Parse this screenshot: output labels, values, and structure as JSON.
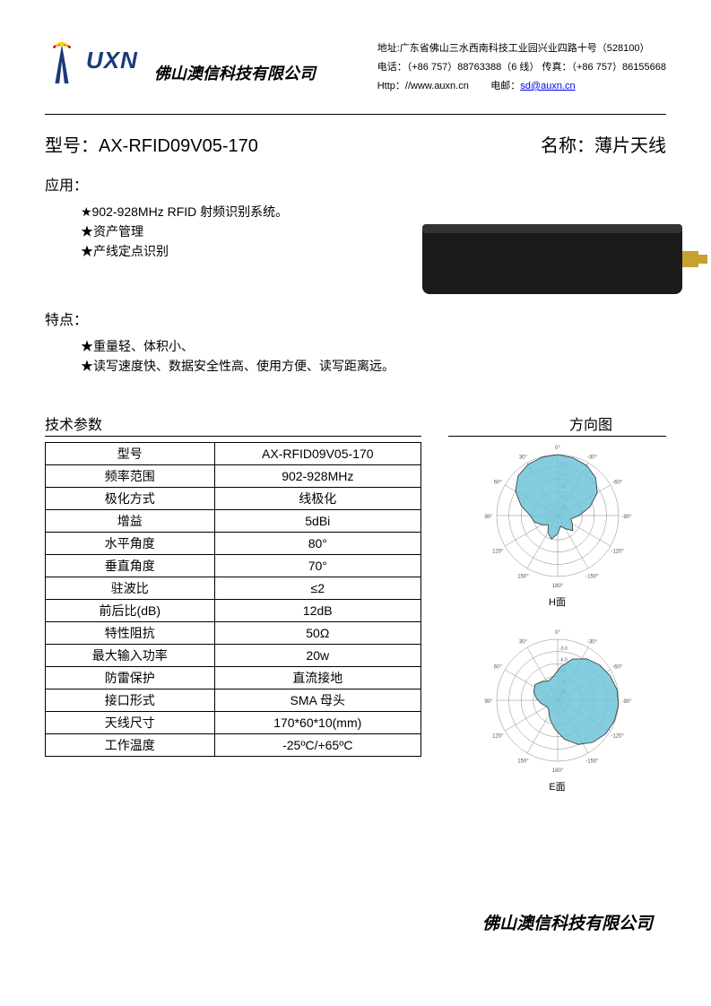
{
  "header": {
    "logo_text": "UXN",
    "logo_colors": {
      "tower": "#1a3a7a",
      "arc1": "#ffcc00",
      "arc2": "#cc0000"
    },
    "company": "佛山澳信科技有限公司",
    "address_label": "地址:",
    "address": "广东省佛山三水西南科技工业园兴业四路十号（528100）",
    "tel_label": "电话：",
    "tel": "（+86 757）88763388（6 线）",
    "fax_label": "传真：",
    "fax": "（+86 757）86155668",
    "http_label": "Http：",
    "http": "//www.auxn.cn",
    "email_label": "电邮：",
    "email": "sd@auxn.cn"
  },
  "title": {
    "model_label": "型号：",
    "model": "AX-RFID09V05-170",
    "name_label": "名称：",
    "name": "薄片天线"
  },
  "application": {
    "heading": "应用：",
    "items": [
      "★902-928MHz RFID 射频识别系统。",
      "★资产管理",
      "★产线定点识别"
    ]
  },
  "features": {
    "heading": "特点：",
    "items": [
      "★重量轻、体积小、",
      "★读写速度快、数据安全性高、使用方便、读写距离远。"
    ]
  },
  "product_image": {
    "body_color": "#1a1a1a",
    "connector_color": "#c8a030"
  },
  "specs": {
    "heading": "技术参数",
    "rows": [
      [
        "型号",
        "AX-RFID09V05-170"
      ],
      [
        "频率范围",
        "902-928MHz"
      ],
      [
        "极化方式",
        "线极化"
      ],
      [
        "增益",
        "5dBi"
      ],
      [
        "水平角度",
        "80°"
      ],
      [
        "垂直角度",
        "70°"
      ],
      [
        "驻波比",
        "≤2"
      ],
      [
        "前后比(dB)",
        "12dB"
      ],
      [
        "特性阻抗",
        "50Ω"
      ],
      [
        "最大输入功率",
        "20w"
      ],
      [
        "防雷保护",
        "直流接地"
      ],
      [
        "接口形式",
        "SMA 母头"
      ],
      [
        "天线尺寸",
        "170*60*10(mm)"
      ],
      [
        "工作温度",
        "-25ºC/+65ºC"
      ]
    ]
  },
  "patterns": {
    "heading": "方向图",
    "fill_color": "#6fc4d8",
    "stroke_color": "#333333",
    "grid_color": "#888888",
    "tick_labels": [
      "-30°",
      "-60°",
      "-90°",
      "-120°",
      "-150°",
      "180°",
      "150°",
      "120°",
      "90°",
      "60°",
      "30°",
      "0°"
    ],
    "db_labels": [
      "-3.0",
      "-6.0",
      "-10",
      "-20",
      "-30"
    ],
    "h_label": "H面",
    "e_label": "E面",
    "h_plane": {
      "angles_deg": [
        0,
        15,
        30,
        45,
        60,
        75,
        90,
        105,
        120,
        135,
        150,
        165,
        180,
        195,
        210,
        225,
        240,
        255,
        270,
        285,
        300,
        315,
        330,
        345
      ],
      "radii_norm": [
        1.0,
        0.98,
        0.95,
        0.88,
        0.75,
        0.55,
        0.35,
        0.22,
        0.28,
        0.35,
        0.25,
        0.18,
        0.3,
        0.4,
        0.32,
        0.22,
        0.3,
        0.4,
        0.45,
        0.62,
        0.8,
        0.92,
        0.97,
        0.99
      ]
    },
    "e_plane": {
      "angles_deg": [
        0,
        15,
        30,
        45,
        60,
        75,
        90,
        105,
        120,
        135,
        150,
        165,
        180,
        195,
        210,
        225,
        240,
        255,
        270,
        285,
        300,
        315,
        330,
        345
      ],
      "radii_norm": [
        0.9,
        0.95,
        0.99,
        1.0,
        0.99,
        0.96,
        0.9,
        0.8,
        0.65,
        0.48,
        0.35,
        0.25,
        0.2,
        0.22,
        0.28,
        0.35,
        0.42,
        0.45,
        0.4,
        0.35,
        0.4,
        0.55,
        0.72,
        0.83
      ]
    }
  },
  "footer": {
    "company": "佛山澳信科技有限公司"
  }
}
